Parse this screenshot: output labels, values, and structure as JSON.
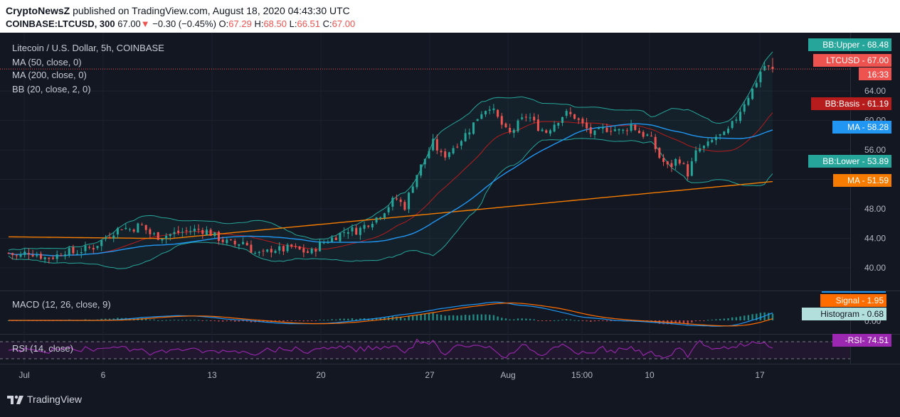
{
  "header": {
    "publisher": "CryptoNewsZ",
    "published_text": "published on TradingView.com, August 18, 2020 04:43:30 UTC",
    "symbol": "COINBASE:LTCUSD, 300",
    "last": "67.00",
    "change_arrow": "▼",
    "change": "−0.30 (−0.45%)",
    "o_label": "O:",
    "o": "67.29",
    "h_label": "H:",
    "h": "68.50",
    "l_label": "L:",
    "l": "66.51",
    "c_label": "C:",
    "c": "67.00"
  },
  "legend": {
    "title": "Litecoin / U.S. Dollar, 5h, COINBASE",
    "ma50": "MA (50, close, 0)",
    "ma200": "MA (200, close, 0)",
    "bb": "BB (20, close, 2, 0)",
    "macd": "MACD (12, 26, close, 9)",
    "rsi": "RSI (14, close)"
  },
  "footer": {
    "brand": "TradingView",
    "logo_icon": "tradingview-logo-icon"
  },
  "colors": {
    "background": "#131722",
    "up": "#26a69a",
    "down": "#ef5350",
    "ma50": "#2196f3",
    "ma200": "#f57c00",
    "bb_basis": "#b71c1c",
    "bb_band": "#26a69a",
    "rsi": "#9c27b0"
  },
  "chart_data": [
    {
      "type": "candlestick",
      "title": "Litecoin / U.S. Dollar, 5h, COINBASE",
      "ylim": [
        37,
        70
      ],
      "y_ticks": [
        "40.00",
        "44.00",
        "48.00",
        "52.00",
        "56.00",
        "60.00",
        "64.00"
      ],
      "x_ticks": [
        "Jul",
        "6",
        "13",
        "20",
        "27",
        "Aug",
        "15:00",
        "10",
        "17"
      ],
      "close_path": [
        42.0,
        41.5,
        42.2,
        41.8,
        41.3,
        41.6,
        42.3,
        42.0,
        42.5,
        42.8,
        43.8,
        44.8,
        45.5,
        45.2,
        45.9,
        44.6,
        44.2,
        44.5,
        44.8,
        45.0,
        45.2,
        45.0,
        44.2,
        43.5,
        43.2,
        43.6,
        42.0,
        41.8,
        42.6,
        42.4,
        42.8,
        42.3,
        42.0,
        43.2,
        43.8,
        44.5,
        45.2,
        45.0,
        46.0,
        46.8,
        48.0,
        49.5,
        48.3,
        52.0,
        54.5,
        57.0,
        55.0,
        56.2,
        57.5,
        59.0,
        61.0,
        62.0,
        60.0,
        58.0,
        59.5,
        60.8,
        59.2,
        58.5,
        59.8,
        61.0,
        60.5,
        59.2,
        58.0,
        58.8,
        59.0,
        58.4,
        59.5,
        58.2,
        57.8,
        55.0,
        53.5,
        55.0,
        52.8,
        56.0,
        56.5,
        57.8,
        58.0,
        60.0,
        62.5,
        64.5,
        67.5,
        67.0
      ],
      "series": [
        {
          "name": "BB:Upper",
          "label": "BB:Upper",
          "last": "68.48"
        },
        {
          "name": "LTCUSD",
          "label": "LTCUSD",
          "last": "67.00",
          "countdown": "16:33"
        },
        {
          "name": "BB:Basis",
          "label": "BB:Basis",
          "last": "61.19"
        },
        {
          "name": "MA 50",
          "label": "MA",
          "last": "58.28"
        },
        {
          "name": "BB:Lower",
          "label": "BB:Lower",
          "last": "53.89"
        },
        {
          "name": "MA 200",
          "label": "MA",
          "last": "51.59"
        }
      ]
    },
    {
      "type": "macd",
      "title": "MACD (12, 26, close, 9)",
      "zero_tick": "0.00",
      "series": [
        {
          "name": "Signal",
          "label": "Signal",
          "last": "1.95"
        },
        {
          "name": "Histogram",
          "label": "Histogram",
          "last": "0.68"
        }
      ]
    },
    {
      "type": "rsi",
      "title": "RSI (14, close)",
      "series": [
        {
          "name": "RSI",
          "label": "RSI",
          "last": "74.51"
        }
      ]
    }
  ]
}
